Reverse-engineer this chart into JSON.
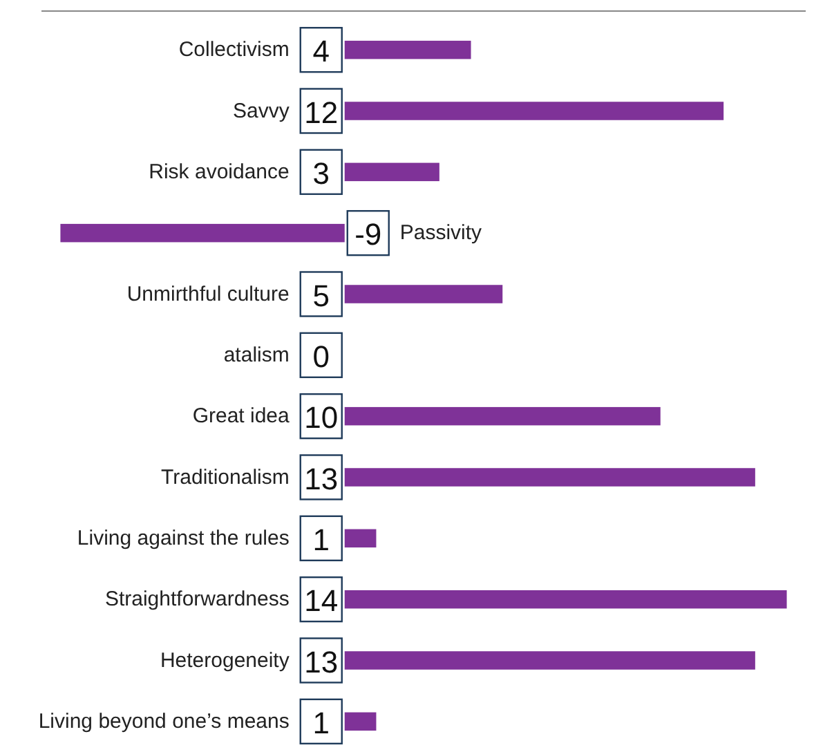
{
  "chart_data": {
    "type": "bar",
    "orientation": "horizontal",
    "categories": [
      "Collectivism",
      "Savvy",
      "Risk avoidance",
      "Passivity",
      "Unmirthful culture",
      "atalism",
      "Great idea",
      "Traditionalism",
      "Living against the rules",
      "Straightforwardness",
      "Heterogeneity",
      "Living beyond one’s means"
    ],
    "values": [
      4,
      12,
      3,
      -9,
      5,
      0,
      10,
      13,
      1,
      14,
      13,
      1
    ],
    "color": "#7f3298",
    "xlim": [
      -9.6,
      14.6
    ],
    "data_labels": true
  }
}
